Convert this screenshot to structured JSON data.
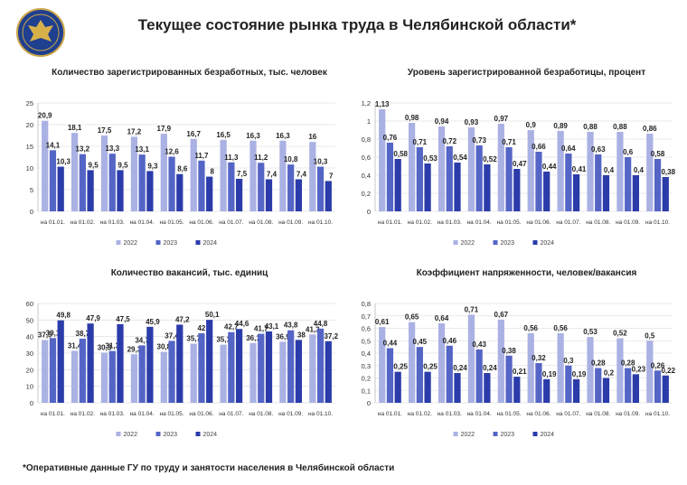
{
  "header": {
    "title": "Текущее состояние рынка труда в Челябинской области*"
  },
  "footnote": "*Оперативные данные ГУ по труду и занятости населения в Челябинской области",
  "chart_data": [
    {
      "type": "bar",
      "title": "Количество зарегистрированных безработных, тыс. человек",
      "categories": [
        "на 01.01.",
        "на 01.02.",
        "на 01.03.",
        "на 01.04.",
        "на 01.05.",
        "на 01.06.",
        "на 01.07.",
        "на 01.08.",
        "на 01.09.",
        "на 01.10."
      ],
      "series": [
        {
          "name": "2022",
          "color": "#aab1e3",
          "values": [
            20.9,
            18.1,
            17.5,
            17.2,
            17.9,
            16.7,
            16.5,
            16.3,
            16.3,
            16
          ],
          "value_labels": [
            "20,9",
            "18,1",
            "17,5",
            "17,2",
            "17,9",
            "16,7",
            "16,5",
            "16,3",
            "16,3",
            "16"
          ]
        },
        {
          "name": "2023",
          "color": "#5465c6",
          "values": [
            14.1,
            13.2,
            13.3,
            13.1,
            12.6,
            11.7,
            11.3,
            11.2,
            10.8,
            10.3
          ],
          "value_labels": [
            "14,1",
            "13,2",
            "13,3",
            "13,1",
            "12,6",
            "11,7",
            "11,3",
            "11,2",
            "10,8",
            "10,3"
          ]
        },
        {
          "name": "2024",
          "color": "#2b3caa",
          "values": [
            10.3,
            9.5,
            9.5,
            9.3,
            8.6,
            8,
            7.5,
            7.4,
            7.4,
            7
          ],
          "value_labels": [
            "10,3",
            "9,5",
            "9,5",
            "9,3",
            "8,6",
            "8",
            "7,5",
            "7,4",
            "7,4",
            "7"
          ]
        }
      ],
      "ylim": [
        0,
        25
      ],
      "yticks": [
        0,
        5,
        10,
        15,
        20,
        25
      ],
      "grid": true,
      "legend": "bottom"
    },
    {
      "type": "bar",
      "title": "Уровень зарегистрированной безработицы, процент",
      "categories": [
        "на 01.01.",
        "на 01.02.",
        "на 01.03.",
        "на 01.04.",
        "на 01.05.",
        "на 01.06.",
        "на 01.07.",
        "на 01.08.",
        "на 01.09.",
        "на 01.10."
      ],
      "series": [
        {
          "name": "2022",
          "color": "#aab1e3",
          "values": [
            1.13,
            0.98,
            0.94,
            0.93,
            0.97,
            0.9,
            0.89,
            0.88,
            0.88,
            0.86
          ],
          "value_labels": [
            "1,13",
            "0,98",
            "0,94",
            "0,93",
            "0,97",
            "0,9",
            "0,89",
            "0,88",
            "0,88",
            "0,86"
          ]
        },
        {
          "name": "2023",
          "color": "#5465c6",
          "values": [
            0.76,
            0.71,
            0.72,
            0.73,
            0.71,
            0.66,
            0.64,
            0.63,
            0.6,
            0.58
          ],
          "value_labels": [
            "0,76",
            "0,71",
            "0,72",
            "0,73",
            "0,71",
            "0,66",
            "0,64",
            "0,63",
            "0,6",
            "0,58"
          ]
        },
        {
          "name": "2024",
          "color": "#2b3caa",
          "values": [
            0.58,
            0.53,
            0.54,
            0.52,
            0.47,
            0.44,
            0.41,
            0.4,
            0.4,
            0.38
          ],
          "value_labels": [
            "0,58",
            "0,53",
            "0,54",
            "0,52",
            "0,47",
            "0,44",
            "0,41",
            "0,4",
            "0,4",
            "0,38"
          ]
        }
      ],
      "ylim": [
        0,
        1.2
      ],
      "yticks": [
        0,
        {
          "value": 0.2,
          "label": "0,2"
        },
        {
          "value": 0.4,
          "label": "0,4"
        },
        {
          "value": 0.6,
          "label": "0,6"
        },
        {
          "value": 0.8,
          "label": "0,8"
        },
        1,
        {
          "value": 1.2,
          "label": "1,2"
        }
      ],
      "grid": true,
      "legend": "bottom"
    },
    {
      "type": "bar",
      "title": "Количество вакансий, тыс. единиц",
      "categories": [
        "на 01.01.",
        "на 01.02.",
        "на 01.03.",
        "на 01.04.",
        "на 01.05.",
        "на 01.06.",
        "на 01.07.",
        "на 01.08.",
        "на 01.09.",
        "на 01.10."
      ],
      "series": [
        {
          "name": "2022",
          "color": "#aab1e3",
          "values": [
            37.9,
            31.4,
            30.3,
            29.3,
            30.8,
            35.7,
            35.1,
            36.1,
            36.9,
            41.3
          ],
          "value_labels": [
            "37,9",
            "31,4",
            "30,3",
            "29,3",
            "30,8",
            "35,7",
            "35,1",
            "36,1",
            "36,9",
            "41,3"
          ]
        },
        {
          "name": "2023",
          "color": "#5465c6",
          "values": [
            39.1,
            38.7,
            31.3,
            34.7,
            37.4,
            42,
            42.7,
            41.7,
            43.8,
            44.8
          ],
          "value_labels": [
            "39,1",
            "38,7",
            "31,3",
            "34,7",
            "37,4",
            "42",
            "42,7",
            "41,7",
            "43,8",
            "44,8"
          ]
        },
        {
          "name": "2024",
          "color": "#2b3caa",
          "values": [
            49.8,
            47.9,
            47.5,
            45.9,
            47.2,
            50.1,
            44.6,
            43.1,
            38,
            37.2
          ],
          "value_labels": [
            "49,8",
            "47,9",
            "47,5",
            "45,9",
            "47,2",
            "50,1",
            "44,6",
            "43,1",
            "38",
            "37,2"
          ]
        }
      ],
      "ylim": [
        0,
        60
      ],
      "yticks": [
        0,
        10,
        20,
        30,
        40,
        50,
        60
      ],
      "grid": true,
      "legend": "bottom"
    },
    {
      "type": "bar",
      "title": "Коэффициент напряженности, человек/вакансия",
      "categories": [
        "на 01.01.",
        "на 01.02.",
        "на 01.03.",
        "на 01.04.",
        "на 01.05.",
        "на 01.06.",
        "на 01.07.",
        "на 01.08.",
        "на 01.09.",
        "на 01.10."
      ],
      "series": [
        {
          "name": "2022",
          "color": "#aab1e3",
          "values": [
            0.61,
            0.65,
            0.64,
            0.71,
            0.67,
            0.56,
            0.56,
            0.53,
            0.52,
            0.5
          ],
          "value_labels": [
            "0,61",
            "0,65",
            "0,64",
            "0,71",
            "0,67",
            "0,56",
            "0,56",
            "0,53",
            "0,52",
            "0,5"
          ]
        },
        {
          "name": "2023",
          "color": "#5465c6",
          "values": [
            0.44,
            0.45,
            0.46,
            0.43,
            0.38,
            0.32,
            0.3,
            0.28,
            0.28,
            0.26
          ],
          "value_labels": [
            "0,44",
            "0,45",
            "0,46",
            "0,43",
            "0,38",
            "0,32",
            "0,3",
            "0,28",
            "0,28",
            "0,26"
          ]
        },
        {
          "name": "2024",
          "color": "#2b3caa",
          "values": [
            0.25,
            0.25,
            0.24,
            0.24,
            0.21,
            0.19,
            0.19,
            0.2,
            0.23,
            0.22
          ],
          "value_labels": [
            "0,25",
            "0,25",
            "0,24",
            "0,24",
            "0,21",
            "0,19",
            "0,19",
            "0,2",
            "0,23",
            "0,22"
          ]
        }
      ],
      "ylim": [
        0,
        0.8
      ],
      "yticks": [
        0,
        {
          "value": 0.1,
          "label": "0,1"
        },
        {
          "value": 0.2,
          "label": "0,2"
        },
        {
          "value": 0.3,
          "label": "0,3"
        },
        {
          "value": 0.4,
          "label": "0,4"
        },
        {
          "value": 0.5,
          "label": "0,5"
        },
        {
          "value": 0.6,
          "label": "0,6"
        },
        {
          "value": 0.7,
          "label": "0,7"
        },
        {
          "value": 0.8,
          "label": "0,8"
        }
      ],
      "grid": true,
      "legend": "bottom"
    }
  ]
}
